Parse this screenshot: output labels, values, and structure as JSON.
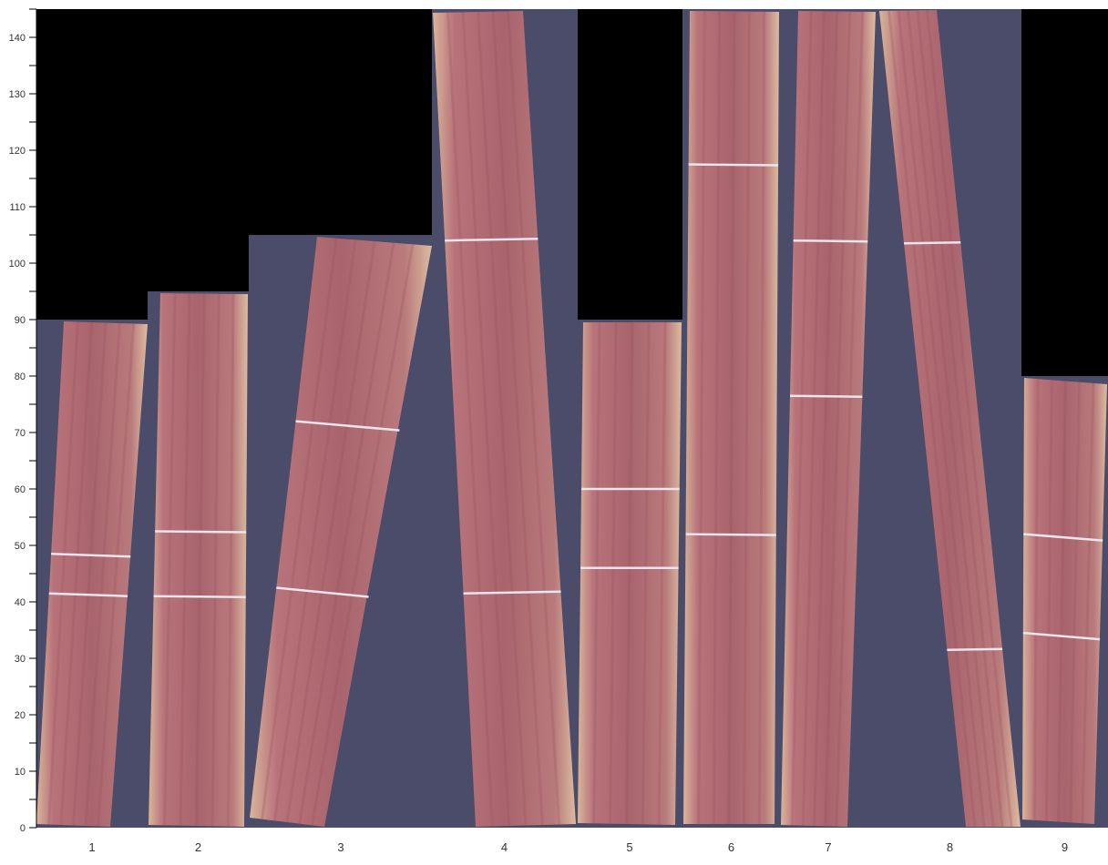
{
  "chart_data": {
    "type": "bar",
    "title": "",
    "xlabel": "",
    "ylabel": "",
    "ylim": [
      0,
      145
    ],
    "yticks": [
      0,
      10,
      20,
      30,
      40,
      50,
      60,
      70,
      80,
      90,
      100,
      110,
      120,
      130,
      140
    ],
    "yminor_step": 5,
    "grid": false,
    "categories": [
      "1",
      "2",
      "3",
      "4",
      "5",
      "6",
      "7",
      "8",
      "9"
    ],
    "values": [
      90,
      95,
      105,
      145,
      90,
      145,
      145,
      145,
      80
    ],
    "cut_marks": [
      [
        48.5,
        41.5
      ],
      [
        52.5,
        41
      ],
      [
        72,
        42.5
      ],
      [
        104,
        41.5
      ],
      [
        60,
        46
      ],
      [
        117.5,
        52
      ],
      [
        104,
        76.5
      ],
      [
        103.5,
        31.5
      ],
      [
        52,
        34.5
      ]
    ],
    "colors": {
      "background": "#4a4c6a",
      "mask": "#000000",
      "heartwood": "#b06a72",
      "sapwood": "#e2c3a6",
      "cut_line": "#e8e4f0"
    }
  }
}
